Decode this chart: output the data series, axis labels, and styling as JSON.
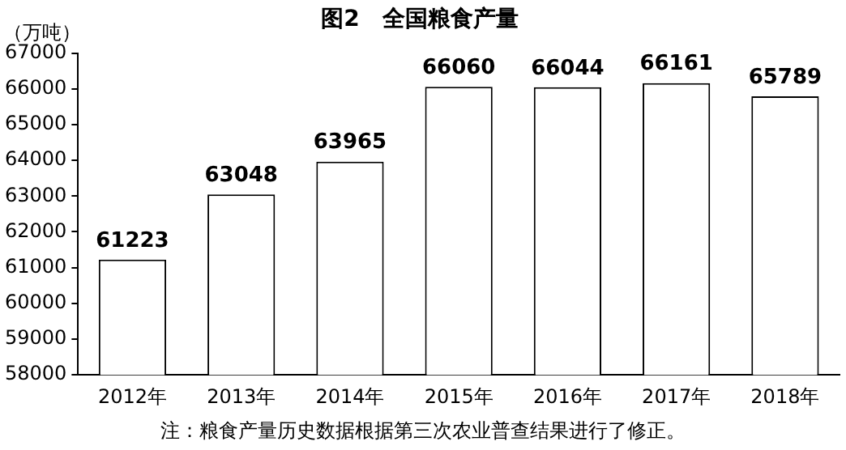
{
  "chart_data": {
    "type": "bar",
    "title": "图2　全国粮食产量",
    "ylabel": "（万吨）",
    "categories": [
      "2012年",
      "2013年",
      "2014年",
      "2015年",
      "2016年",
      "2017年",
      "2018年"
    ],
    "values": [
      61223,
      63048,
      63965,
      66060,
      66044,
      66161,
      65789
    ],
    "color": "#ffffff",
    "ylim": [
      58000,
      67000
    ],
    "yticks": [
      58000,
      59000,
      60000,
      61000,
      62000,
      63000,
      64000,
      65000,
      66000,
      67000
    ],
    "grid": false,
    "legend": false,
    "data_labels": true,
    "annotations": [
      "注：粮食产量历史数据根据第三次农业普查结果进行了修正。"
    ]
  }
}
